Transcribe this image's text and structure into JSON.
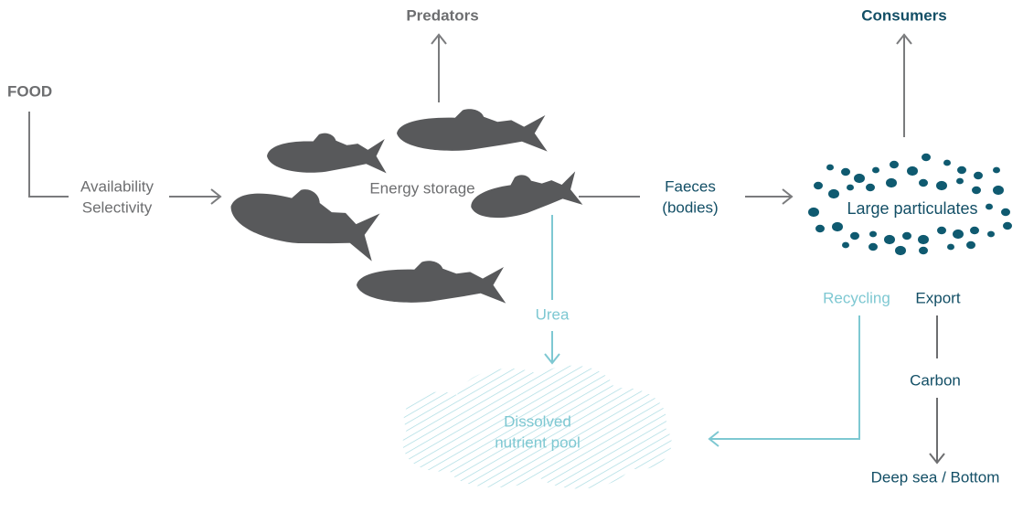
{
  "labels": {
    "predators": "Predators",
    "consumers": "Consumers",
    "food": "FOOD",
    "availability": [
      "Availability",
      "Selectivity"
    ],
    "energy": "Energy storage",
    "faeces": [
      "Faeces",
      "(bodies)"
    ],
    "particulates": "Large particulates",
    "recycling": "Recycling",
    "export": "Export",
    "urea": "Urea",
    "carbon": "Carbon",
    "pool": [
      "Dissolved",
      "nutrient pool"
    ],
    "deep": "Deep sea / Bottom"
  }
}
